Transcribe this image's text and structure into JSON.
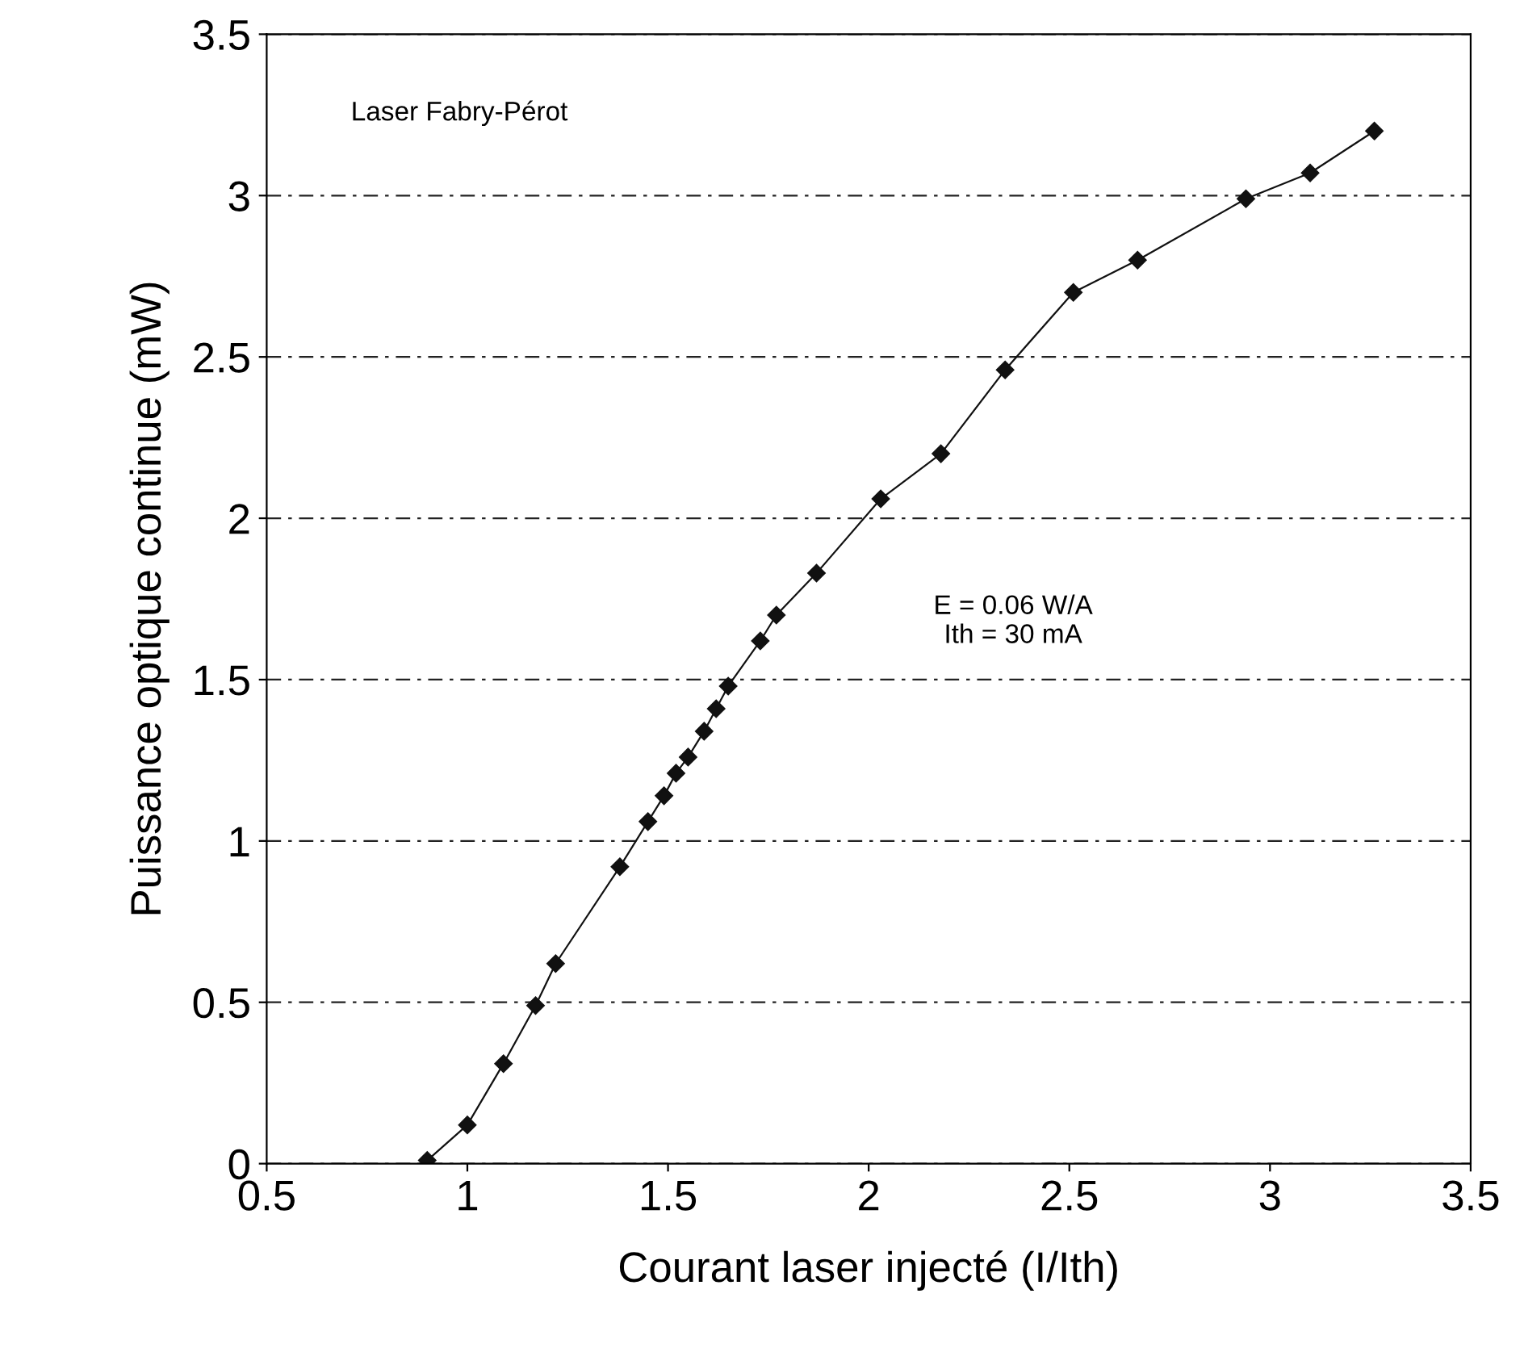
{
  "chart_data": {
    "type": "line",
    "xlabel": "Courant laser injecté (I/Ith)",
    "ylabel": "Puissance optique continue (mW)",
    "x": [
      0.9,
      1.0,
      1.09,
      1.17,
      1.22,
      1.38,
      1.45,
      1.49,
      1.52,
      1.55,
      1.59,
      1.62,
      1.65,
      1.73,
      1.77,
      1.87,
      2.03,
      2.18,
      2.34,
      2.51,
      2.67,
      2.94,
      3.1,
      3.26
    ],
    "series": [
      {
        "color": "#111111",
        "values": [
          0.01,
          0.12,
          0.31,
          0.49,
          0.62,
          0.92,
          1.06,
          1.14,
          1.21,
          1.26,
          1.34,
          1.41,
          1.48,
          1.62,
          1.7,
          1.83,
          2.06,
          2.2,
          2.46,
          2.7,
          2.8,
          2.99,
          3.07,
          3.2
        ]
      }
    ],
    "xlim": [
      0.5,
      3.5
    ],
    "xticks": [
      0.5,
      1,
      1.5,
      2,
      2.5,
      3,
      3.5
    ],
    "ylim": [
      0,
      3.5
    ],
    "yticks": [
      0,
      0.5,
      1,
      1.5,
      2,
      2.5,
      3,
      3.5
    ],
    "grid": "y",
    "marker": "diamond",
    "line_style": "solid",
    "legend": false,
    "annotations": [
      "Laser Fabry-Pérot",
      "E = 0.06 W/A\nIth = 30 mA"
    ]
  }
}
